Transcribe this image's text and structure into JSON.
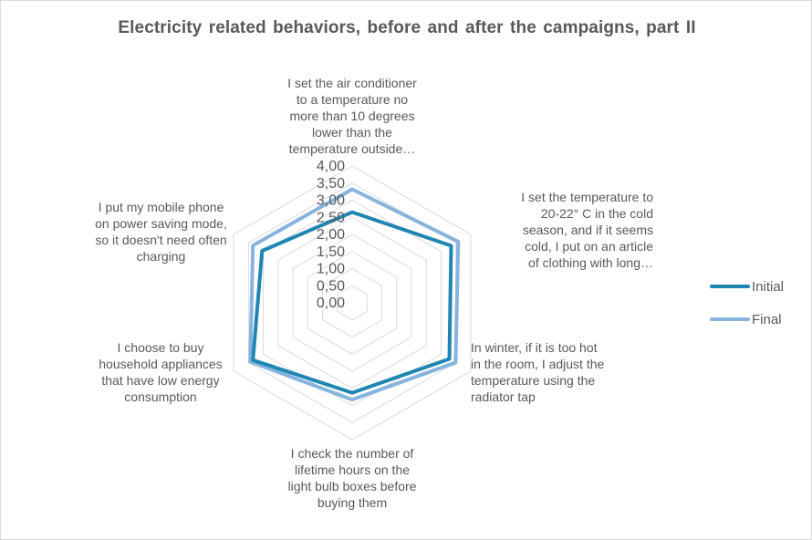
{
  "chart_data": {
    "type": "radar",
    "title": "Electricity  related behaviors, before and after the campaigns,  part II",
    "categories": [
      "I set the air conditioner to a temperature no more than 10 degrees lower than the temperature outside…",
      "I set the temperature to 20-22° C in the cold season, and if it seems cold, I put on an article of clothing with long…",
      "In winter, if it is too hot in the room, I adjust the temperature using the radiator tap",
      "I check the number of lifetime hours on the light bulb boxes before buying them",
      "I choose to buy household appliances that have low energy consumption",
      "I put my mobile phone on power saving mode, so it doesn't need often charging"
    ],
    "category_lines": [
      [
        "I set the air conditioner",
        "to a temperature no",
        "more than 10 degrees",
        "lower than the",
        "temperature outside…"
      ],
      [
        "I set the temperature to",
        "20-22° C in the cold",
        "season, and if it seems",
        "cold, I put on an article",
        "of clothing with long…"
      ],
      [
        "In winter, if it is too hot",
        "in the room, I adjust the",
        "temperature using the",
        "radiator tap"
      ],
      [
        "I check the number of",
        "lifetime hours on the",
        "light bulb boxes before",
        "buying them"
      ],
      [
        "I choose to buy",
        "household appliances",
        "that have low energy",
        "consumption"
      ],
      [
        "I put my mobile phone",
        "on power saving mode,",
        "so it doesn't need often",
        "charging"
      ]
    ],
    "ticks": [
      "0,00",
      "0,50",
      "1,00",
      "1,50",
      "2,00",
      "2,50",
      "3,00",
      "3,50",
      "4,00"
    ],
    "range": [
      0,
      4
    ],
    "series": [
      {
        "name": "Initial",
        "values": [
          2.65,
          3.34,
          3.28,
          2.63,
          3.35,
          3.04
        ],
        "color": "#1f86b2"
      },
      {
        "name": "Final",
        "values": [
          3.32,
          3.58,
          3.49,
          2.83,
          3.44,
          3.35
        ],
        "color": "#86b4de"
      }
    ],
    "grid": true,
    "legend_position": "right"
  }
}
